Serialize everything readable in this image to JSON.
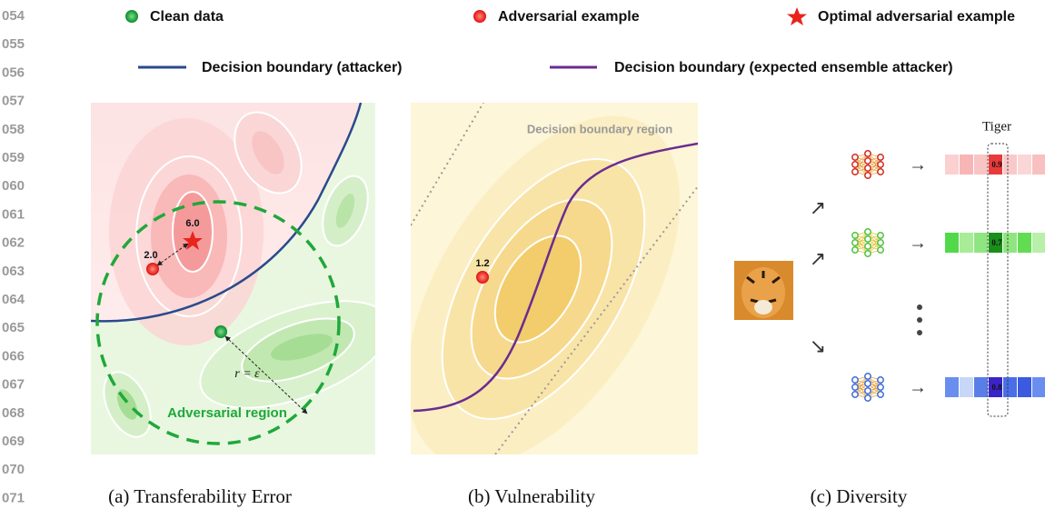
{
  "line_numbers": [
    "054",
    "055",
    "056",
    "057",
    "058",
    "059",
    "060",
    "061",
    "062",
    "063",
    "064",
    "065",
    "066",
    "067",
    "068",
    "069",
    "070",
    "071"
  ],
  "legend": {
    "clean": "Clean data",
    "adversarial": "Adversarial example",
    "optimal": "Optimal adversarial example",
    "boundary_attacker": "Decision boundary (attacker)",
    "boundary_ensemble": "Decision boundary (expected ensemble attacker)"
  },
  "panel_a": {
    "caption": "(a) Transferability Error",
    "optimal_value": "6.0",
    "adversarial_value": "2.0",
    "radius": "r = ε",
    "region": "Adversarial region"
  },
  "panel_b": {
    "caption": "(b) Vulnerability",
    "region": "Decision boundary region",
    "adversarial_value": "1.2"
  },
  "panel_c": {
    "caption": "(c) Diversity",
    "class_label": "Tiger",
    "models": [
      {
        "score": "0.9"
      },
      {
        "score": "0.7"
      },
      {
        "score": "0.8"
      }
    ]
  }
}
